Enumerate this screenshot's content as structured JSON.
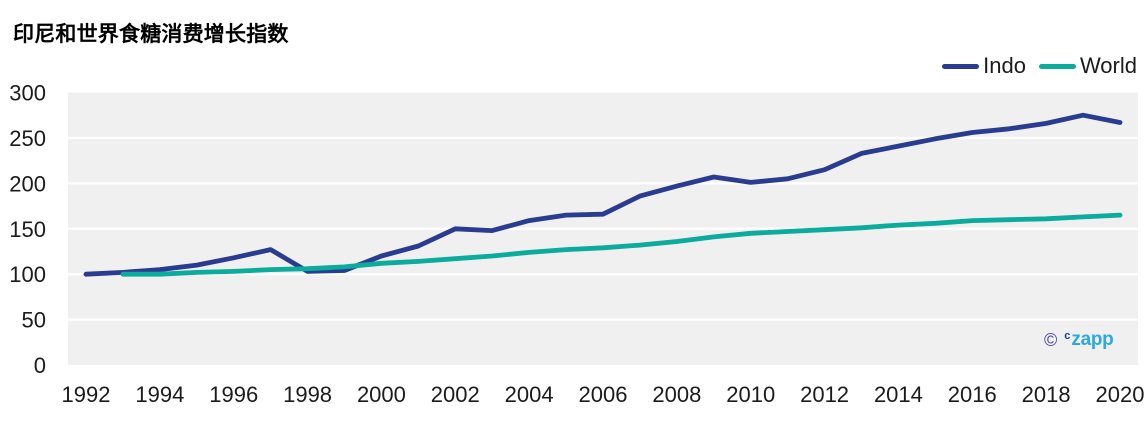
{
  "chart": {
    "title": "印尼和世界食糖消费增长指数"
  },
  "watermark": {
    "copyright": "©",
    "prefix": "c",
    "brand": "zapp"
  },
  "chart_data": {
    "type": "line",
    "title": "印尼和世界食糖消费增长指数",
    "xlabel": "",
    "ylabel": "",
    "xlim": [
      1992,
      2020
    ],
    "ylim": [
      0,
      300
    ],
    "xticks": [
      1992,
      1994,
      1996,
      1998,
      2000,
      2002,
      2004,
      2006,
      2008,
      2010,
      2012,
      2014,
      2016,
      2018,
      2020
    ],
    "yticks": [
      0,
      50,
      100,
      150,
      200,
      250,
      300
    ],
    "grid": "horizontal-white-on-gray",
    "plot_bg": "#F0F0F0",
    "grid_color": "#FFFFFF",
    "legend_position": "top-right",
    "series": [
      {
        "name": "Indo",
        "color": "#2A3C90",
        "x": [
          1992,
          1993,
          1994,
          1995,
          1996,
          1997,
          1998,
          1999,
          2000,
          2001,
          2002,
          2003,
          2004,
          2005,
          2006,
          2007,
          2008,
          2009,
          2010,
          2011,
          2012,
          2013,
          2014,
          2015,
          2016,
          2017,
          2018,
          2019,
          2020
        ],
        "values": [
          100,
          102,
          105,
          110,
          118,
          127,
          103,
          104,
          120,
          131,
          150,
          148,
          159,
          165,
          166,
          186,
          197,
          207,
          201,
          205,
          215,
          233,
          241,
          249,
          256,
          260,
          266,
          275,
          267
        ]
      },
      {
        "name": "World",
        "color": "#0BAB9D",
        "x": [
          1993,
          1994,
          1995,
          1996,
          1997,
          1998,
          1999,
          2000,
          2001,
          2002,
          2003,
          2004,
          2005,
          2006,
          2007,
          2008,
          2009,
          2010,
          2011,
          2012,
          2013,
          2014,
          2015,
          2016,
          2017,
          2018,
          2019,
          2020
        ],
        "values": [
          100,
          100,
          102,
          103,
          105,
          106,
          108,
          112,
          114,
          117,
          120,
          124,
          127,
          129,
          132,
          136,
          141,
          145,
          147,
          149,
          151,
          154,
          156,
          159,
          160,
          161,
          163,
          165
        ]
      }
    ]
  }
}
